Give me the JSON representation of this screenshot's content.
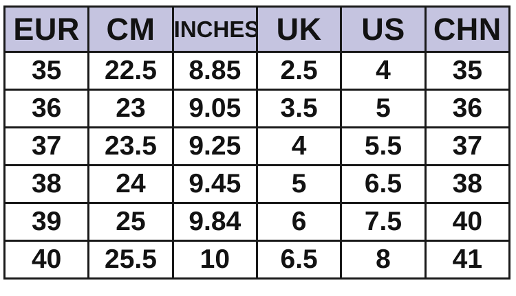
{
  "chart_data": {
    "type": "table",
    "columns": [
      "EUR",
      "CM",
      "INCHES",
      "UK",
      "US",
      "CHN"
    ],
    "rows": [
      [
        "35",
        "22.5",
        "8.85",
        "2.5",
        "4",
        "35"
      ],
      [
        "36",
        "23",
        "9.05",
        "3.5",
        "5",
        "36"
      ],
      [
        "37",
        "23.5",
        "9.25",
        "4",
        "5.5",
        "37"
      ],
      [
        "38",
        "24",
        "9.45",
        "5",
        "6.5",
        "38"
      ],
      [
        "39",
        "25",
        "9.84",
        "6",
        "7.5",
        "40"
      ],
      [
        "40",
        "25.5",
        "10",
        "6.5",
        "8",
        "41"
      ]
    ],
    "layout": {
      "grid": "on",
      "header_bg": "#c5c4e0",
      "border_color": "#191919",
      "text_color": "#121212",
      "row_bg": "#ffffff",
      "page_bg": "#ffffff"
    }
  }
}
